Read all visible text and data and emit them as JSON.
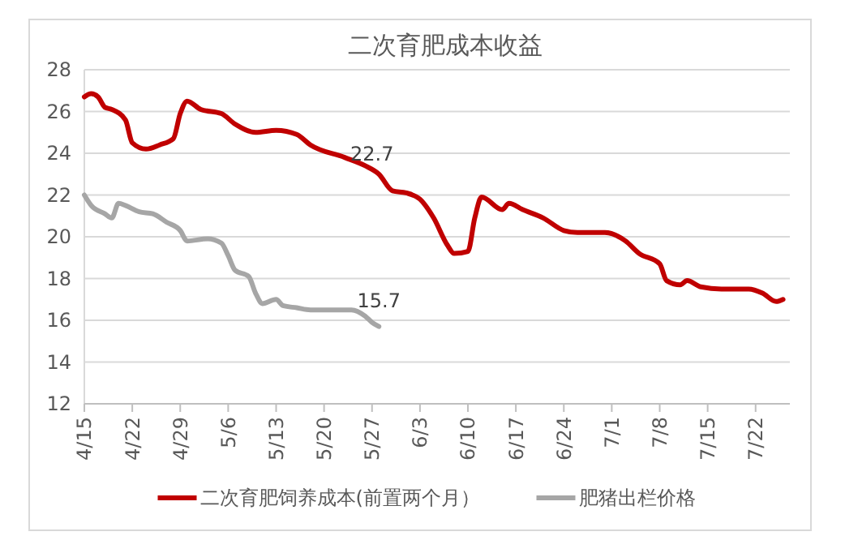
{
  "chart_data": {
    "type": "line",
    "title": "二次育肥成本收益",
    "x": [
      "--04-15",
      "--04-16",
      "--04-17",
      "--04-18",
      "--04-19",
      "--04-21",
      "--04-22",
      "--04-24",
      "--04-26",
      "--04-28",
      "--04-29",
      "--04-30",
      "--05-02",
      "--05-05",
      "--05-07",
      "--05-10",
      "--05-13",
      "--05-16",
      "--05-18",
      "--05-23",
      "--05-26",
      "--05-28",
      "--05-30",
      "--06-01",
      "--06-03",
      "--06-05",
      "--06-07",
      "--06-08",
      "--06-10",
      "--06-11",
      "--06-12",
      "--06-15",
      "--06-16",
      "--06-18",
      "--06-21",
      "--06-24",
      "--06-26",
      "--06-30",
      "--07-03",
      "--07-05",
      "--07-08",
      "--07-09",
      "--07-11",
      "--07-12",
      "--07-14",
      "--07-17",
      "--07-21",
      "--07-23",
      "--07-25",
      "--07-26"
    ],
    "series": [
      {
        "name": "二次育肥饲养成本(前置两个月）",
        "color": "#c00000",
        "values": [
          26.7,
          26.85,
          26.7,
          26.2,
          26.1,
          25.6,
          24.5,
          24.2,
          24.4,
          24.7,
          25.9,
          26.5,
          26.1,
          25.9,
          25.4,
          25.0,
          25.1,
          24.9,
          24.4,
          23.8,
          23.4,
          23.0,
          22.2,
          22.1,
          21.8,
          20.9,
          19.6,
          19.2,
          19.3,
          20.9,
          21.9,
          21.3,
          21.6,
          21.3,
          20.9,
          20.3,
          20.2,
          20.2,
          19.8,
          19.2,
          18.7,
          17.9,
          17.7,
          17.9,
          17.6,
          17.5,
          17.5,
          17.3,
          16.9,
          17.0
        ]
      },
      {
        "name": "肥猪出栏价格",
        "color": "#a6a6a6",
        "x": [
          "--04-15",
          "--04-16",
          "--04-18",
          "--04-19",
          "--04-20",
          "--04-21",
          "--04-23",
          "--04-25",
          "--04-27",
          "--04-29",
          "--04-30",
          "--05-03",
          "--05-05",
          "--05-06",
          "--05-07",
          "--05-09",
          "--05-10",
          "--05-11",
          "--05-13",
          "--05-14",
          "--05-16",
          "--05-18",
          "--05-22",
          "--05-24",
          "--05-26",
          "--05-27",
          "--05-28"
        ],
        "values": [
          22.0,
          21.5,
          21.1,
          20.9,
          21.6,
          21.5,
          21.2,
          21.1,
          20.7,
          20.3,
          19.8,
          19.9,
          19.7,
          19.1,
          18.4,
          18.1,
          17.3,
          16.8,
          17.0,
          16.7,
          16.6,
          16.5,
          16.5,
          16.5,
          16.2,
          15.9,
          15.7
        ]
      }
    ],
    "xlim": [
      "--04-15",
      "--07-27"
    ],
    "xticks": [
      {
        "value": "--04-15",
        "label": "4/15"
      },
      {
        "value": "--04-22",
        "label": "4/22"
      },
      {
        "value": "--04-29",
        "label": "4/29"
      },
      {
        "value": "--05-06",
        "label": "5/6"
      },
      {
        "value": "--05-13",
        "label": "5/13"
      },
      {
        "value": "--05-20",
        "label": "5/20"
      },
      {
        "value": "--05-27",
        "label": "5/27"
      },
      {
        "value": "--06-03",
        "label": "6/3"
      },
      {
        "value": "--06-10",
        "label": "6/10"
      },
      {
        "value": "--06-17",
        "label": "6/17"
      },
      {
        "value": "--06-24",
        "label": "6/24"
      },
      {
        "value": "--07-01",
        "label": "7/1"
      },
      {
        "value": "--07-08",
        "label": "7/8"
      },
      {
        "value": "--07-15",
        "label": "7/15"
      },
      {
        "value": "--07-22",
        "label": "7/22"
      }
    ],
    "ylim": [
      12,
      28
    ],
    "yticks": [
      12,
      14,
      16,
      18,
      20,
      22,
      24,
      26,
      28
    ],
    "grid": "y",
    "legend": "bottom",
    "line_style": "solid",
    "marker": "none",
    "annotations": [
      {
        "text": "22.7",
        "x": "--05-27",
        "y": 22.7
      },
      {
        "text": "15.7",
        "x": "--05-28",
        "y": 15.7
      }
    ]
  }
}
